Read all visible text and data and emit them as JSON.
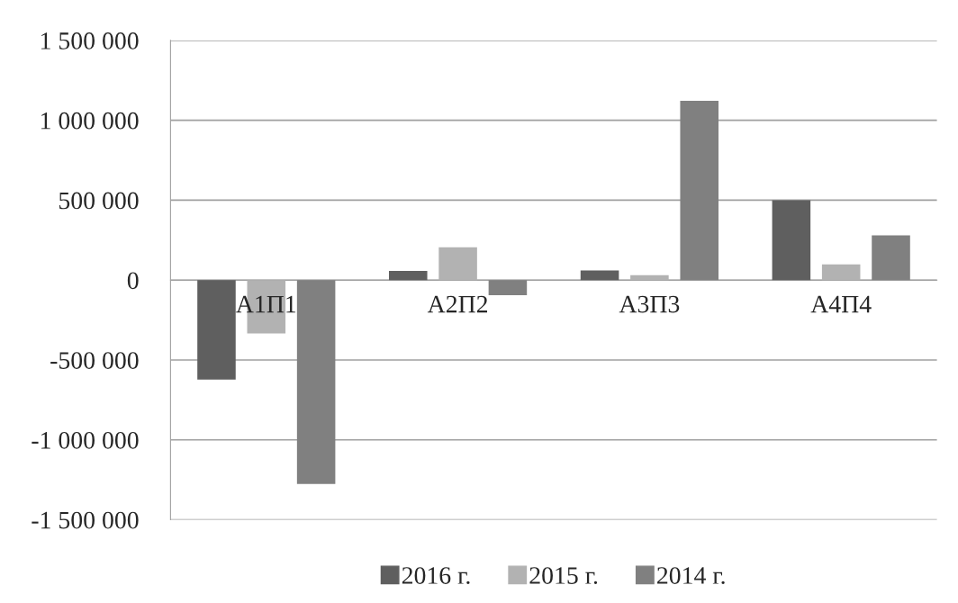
{
  "chart_data": {
    "type": "bar",
    "categories": [
      "А1П1",
      "А2П2",
      "А3П3",
      "А4П4"
    ],
    "series": [
      {
        "name": "2016 г.",
        "color": "#5f5f5f",
        "values": [
          -623000,
          57000,
          61000,
          500000
        ]
      },
      {
        "name": "2015 г.",
        "color": "#b2b2b2",
        "values": [
          -334000,
          206000,
          31000,
          99000
        ]
      },
      {
        "name": "2014 г.",
        "color": "#808080",
        "values": [
          -1276000,
          -95000,
          1122000,
          280000
        ]
      }
    ],
    "ylim": [
      -1500000,
      1500000
    ],
    "yticks": [
      {
        "value": -1500000,
        "label": "-1 500 000"
      },
      {
        "value": -1000000,
        "label": "-1 000 000"
      },
      {
        "value": -500000,
        "label": "-500 000"
      },
      0,
      {
        "value": 500000,
        "label": "500 000"
      },
      {
        "value": 1000000,
        "label": "1 000 000"
      },
      {
        "value": 1500000,
        "label": "1 500 000"
      }
    ],
    "grid": "y",
    "legend": "bottom"
  }
}
